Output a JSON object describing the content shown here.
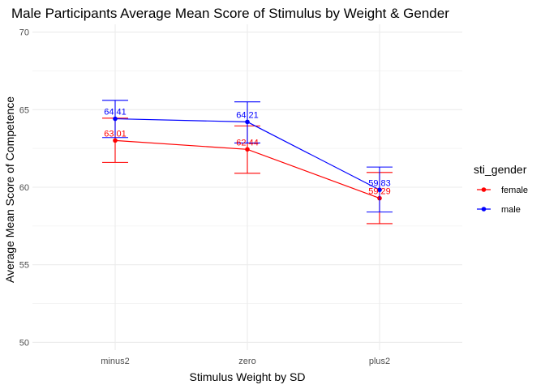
{
  "chart_data": {
    "type": "line",
    "title": "Male Participants Average Mean Score of Stimulus by Weight & Gender",
    "xlabel": "Stimulus Weight by SD",
    "ylabel": "Average Mean Score of Competence",
    "categories": [
      "minus2",
      "zero",
      "plus2"
    ],
    "ylim": [
      49.5,
      70.5
    ],
    "yticks": [
      50,
      55,
      60,
      65,
      70
    ],
    "grid": true,
    "legend": {
      "title": "sti_gender",
      "position": "right"
    },
    "series": [
      {
        "name": "female",
        "color": "#ff0000",
        "values": [
          63.01,
          62.44,
          59.29
        ],
        "labels": [
          "63.01",
          "62.44",
          "59.29"
        ],
        "error_low": [
          61.6,
          60.9,
          57.65
        ],
        "error_high": [
          64.45,
          63.95,
          60.95
        ]
      },
      {
        "name": "male",
        "color": "#0000ff",
        "values": [
          64.41,
          64.21,
          59.83
        ],
        "labels": [
          "64.41",
          "64.21",
          "59.83"
        ],
        "error_low": [
          63.2,
          62.85,
          58.4
        ],
        "error_high": [
          65.6,
          65.5,
          61.3
        ]
      }
    ]
  }
}
